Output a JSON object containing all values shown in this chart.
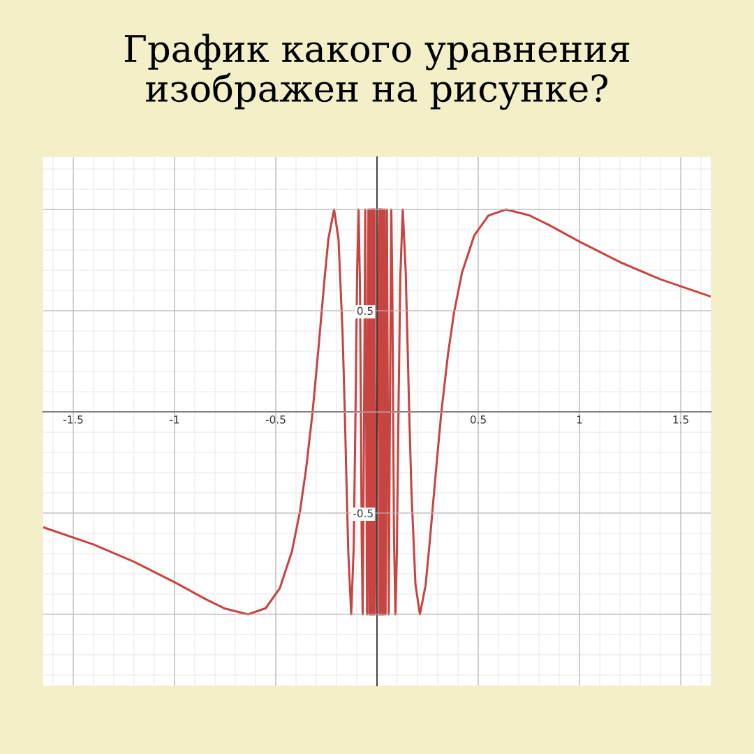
{
  "chart_data": {
    "type": "line",
    "title": "График какого уравнения\nизображен на рисунке?",
    "x": [
      -1.648,
      -1.4,
      -1.2,
      -1.0,
      -0.85,
      -0.75,
      -0.637,
      -0.55,
      -0.48,
      -0.42,
      -0.38,
      -0.35,
      -0.318,
      -0.29,
      -0.26,
      -0.24,
      -0.212,
      -0.19,
      -0.17,
      -0.159,
      -0.15,
      -0.1415,
      -0.1273,
      -0.115,
      -0.1061,
      -0.098,
      -0.0909,
      -0.084,
      -0.0796,
      -0.0755,
      -0.0707,
      -0.0637,
      -0.0579,
      -0.049,
      -0.0424,
      -0.0375,
      -0.0335,
      -0.0303,
      -0.0277,
      -0.0255,
      -0.0236,
      -0.022,
      -0.0205,
      -0.0193,
      -0.0182,
      -0.0172,
      -0.0163,
      -0.0155,
      -0.0148,
      -0.0142,
      -0.0135,
      -0.013,
      -0.0125,
      -0.012,
      -0.0116,
      -0.0112,
      -0.0108,
      -0.0104,
      0.0104,
      0.0108,
      0.0112,
      0.0116,
      0.012,
      0.0125,
      0.013,
      0.0135,
      0.0142,
      0.0148,
      0.0155,
      0.0163,
      0.0172,
      0.0182,
      0.0193,
      0.0205,
      0.022,
      0.0236,
      0.0255,
      0.0277,
      0.0303,
      0.0335,
      0.0375,
      0.0424,
      0.049,
      0.0579,
      0.0637,
      0.0707,
      0.0755,
      0.0796,
      0.084,
      0.0909,
      0.098,
      0.1061,
      0.115,
      0.1273,
      0.1415,
      0.15,
      0.159,
      0.17,
      0.19,
      0.212,
      0.24,
      0.26,
      0.29,
      0.318,
      0.35,
      0.38,
      0.42,
      0.48,
      0.55,
      0.637,
      0.75,
      0.85,
      1.0,
      1.2,
      1.4,
      1.648
    ],
    "series": [
      {
        "color": "#c74440",
        "values": [
          -0.57,
          -0.655,
          -0.74,
          -0.841,
          -0.923,
          -0.972,
          -1.0,
          -0.97,
          -0.871,
          -0.689,
          -0.489,
          -0.28,
          0.0,
          0.303,
          0.647,
          0.856,
          1.0,
          0.853,
          0.388,
          0.0,
          -0.374,
          -0.7,
          -1.0,
          -0.666,
          0.0,
          0.702,
          1.0,
          0.614,
          0.0,
          -0.628,
          -1.0,
          0.0,
          1.0,
          -1,
          1,
          -1,
          1,
          -1,
          1,
          -1,
          1,
          -1,
          1,
          -1,
          1,
          -1,
          1,
          -1,
          1,
          -1,
          1,
          -1,
          1,
          -1,
          1,
          -1,
          1,
          -1,
          1,
          -1,
          1,
          -1,
          1,
          -1,
          1,
          -1,
          1,
          -1,
          1,
          -1,
          1,
          -1,
          1,
          -1,
          1,
          -1,
          1,
          -1,
          1,
          -1,
          1,
          -1,
          1,
          -1.0,
          0.0,
          1.0,
          0.628,
          0.0,
          -0.614,
          -1.0,
          -0.702,
          0.0,
          0.666,
          1.0,
          0.7,
          0.374,
          0.0,
          -0.388,
          -0.853,
          -1.0,
          -0.856,
          -0.647,
          -0.303,
          0.0,
          0.28,
          0.489,
          0.689,
          0.871,
          0.97,
          1.0,
          0.972,
          0.923,
          0.841,
          0.74,
          0.655,
          0.57
        ]
      }
    ],
    "xlim": [
      -1.648,
      1.648
    ],
    "ylim": [
      -1.352,
      1.259
    ],
    "xticks": [
      -1.5,
      -1,
      -0.5,
      {
        "value": 0,
        "label": null
      },
      0.5,
      1,
      1.5
    ],
    "yticks": [
      {
        "value": -1,
        "label": null
      },
      -0.5,
      {
        "value": 0,
        "label": null
      },
      0.5,
      {
        "value": 1,
        "label": null
      }
    ],
    "grid": true,
    "marker": "none",
    "line_style": "solid"
  }
}
